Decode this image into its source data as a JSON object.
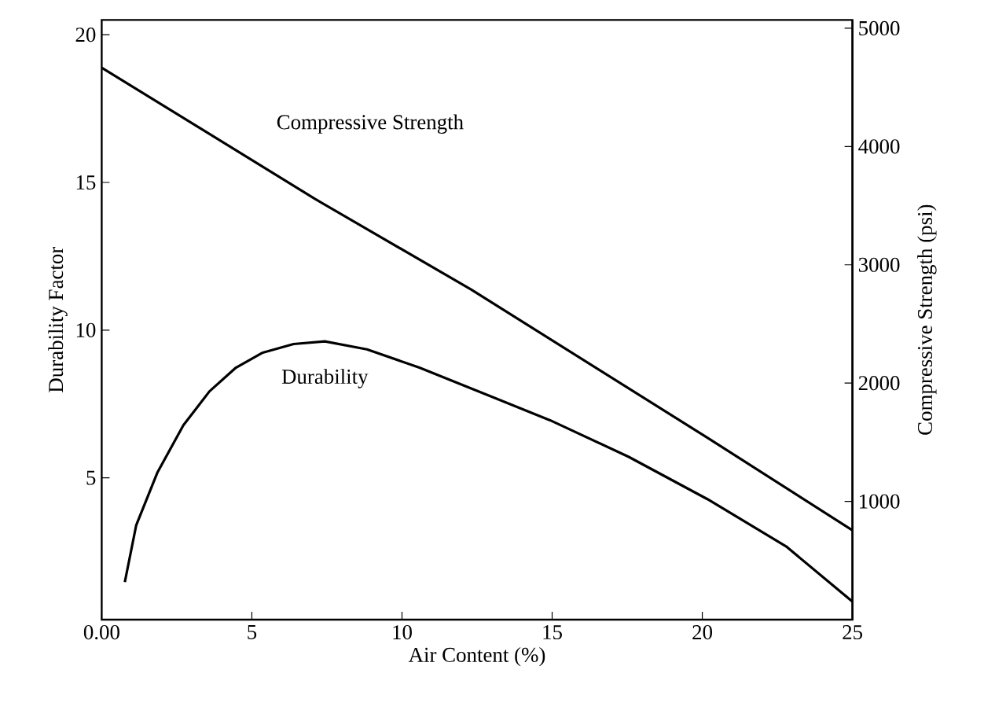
{
  "chart_data": {
    "type": "line",
    "xlabel": "Air Content (%)",
    "ylabel": "Durability Factor",
    "y2label": "Compressive Strength (psi)",
    "xlim": [
      0,
      25
    ],
    "xticks": [
      {
        "value": 0,
        "label": "0.00"
      },
      5,
      10,
      15,
      20,
      25
    ],
    "ylim": [
      0.2,
      20.5
    ],
    "yticks": [
      5,
      10,
      15,
      20
    ],
    "y2lim": [
      0,
      5070
    ],
    "y2ticks": [
      1000,
      2000,
      3000,
      4000,
      5000
    ],
    "grid": false,
    "legend": false,
    "marker": "none",
    "line_style": "solid",
    "series": [
      {
        "name": "Compressive Strength",
        "color": "#000000",
        "axis": "y2",
        "x": [
          0,
          7.1,
          12.3,
          20.2,
          25
        ],
        "values": [
          4667,
          3557,
          2792,
          1533,
          756
        ]
      },
      {
        "name": "Durability",
        "color": "#000000",
        "axis": "y",
        "x": [
          0.77,
          1.15,
          1.85,
          2.72,
          3.59,
          4.47,
          5.34,
          6.39,
          7.43,
          8.83,
          10.58,
          12.32,
          14.93,
          17.55,
          20.17,
          22.79,
          25.0
        ],
        "values": [
          1.47,
          3.4,
          5.17,
          6.78,
          7.93,
          8.73,
          9.23,
          9.53,
          9.62,
          9.35,
          8.73,
          8.02,
          6.95,
          5.71,
          4.28,
          2.68,
          0.81
        ]
      }
    ]
  }
}
